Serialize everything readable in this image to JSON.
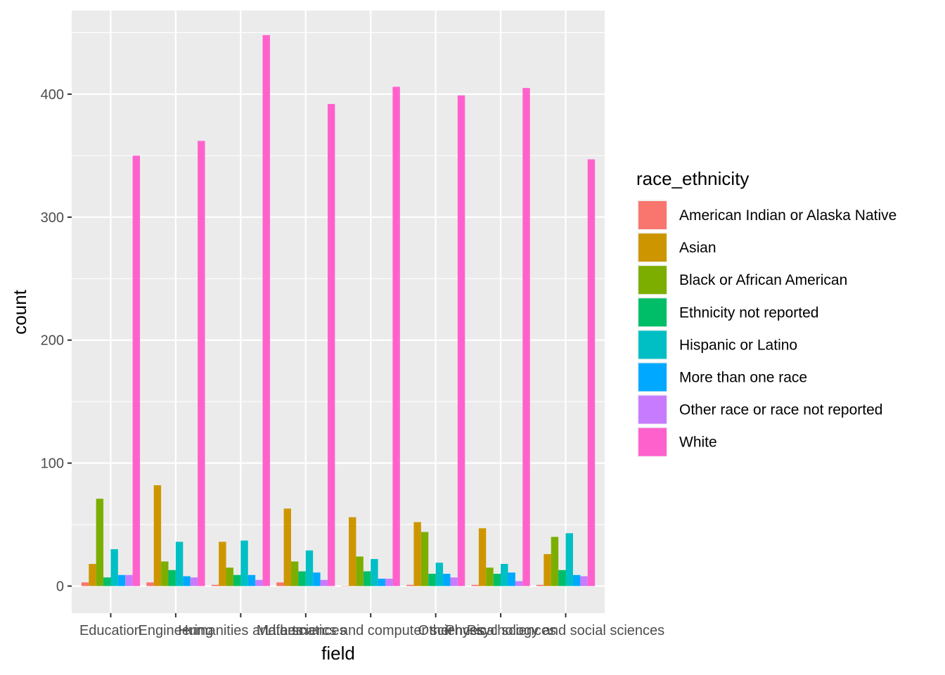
{
  "chart_data": {
    "type": "bar",
    "title": "",
    "xlabel": "field",
    "ylabel": "count",
    "ylim": [
      -22,
      468
    ],
    "yticks": [
      0,
      100,
      200,
      300,
      400
    ],
    "grid": true,
    "legend": {
      "title": "race_ethnicity",
      "position": "right"
    },
    "categories": [
      "Education",
      "Engineering",
      "Humanities and arts",
      "Life sciences",
      "Mathematics and computer sciences",
      "Other",
      "Physical sciences",
      "Psychology and social sciences"
    ],
    "series": [
      {
        "name": "American Indian or Alaska Native",
        "color": "#F8766D",
        "values": [
          3,
          3,
          1,
          3,
          0,
          1,
          1,
          1
        ]
      },
      {
        "name": "Asian",
        "color": "#CD9600",
        "values": [
          18,
          82,
          36,
          63,
          56,
          52,
          47,
          26
        ]
      },
      {
        "name": "Black or African American",
        "color": "#7CAE00",
        "values": [
          71,
          20,
          15,
          20,
          24,
          44,
          15,
          40
        ]
      },
      {
        "name": "Ethnicity not reported",
        "color": "#00BE67",
        "values": [
          7,
          13,
          9,
          12,
          12,
          10,
          10,
          13
        ]
      },
      {
        "name": "Hispanic or Latino",
        "color": "#00BFC4",
        "values": [
          30,
          36,
          37,
          29,
          22,
          19,
          18,
          43
        ]
      },
      {
        "name": "More than one race",
        "color": "#00A9FF",
        "values": [
          9,
          8,
          9,
          11,
          6,
          10,
          11,
          9
        ]
      },
      {
        "name": "Other race or race not reported",
        "color": "#C77CFF",
        "values": [
          9,
          7,
          5,
          5,
          6,
          7,
          4,
          8
        ]
      },
      {
        "name": "White",
        "color": "#FF61CC",
        "values": [
          350,
          362,
          448,
          392,
          406,
          399,
          405,
          347
        ]
      }
    ]
  }
}
